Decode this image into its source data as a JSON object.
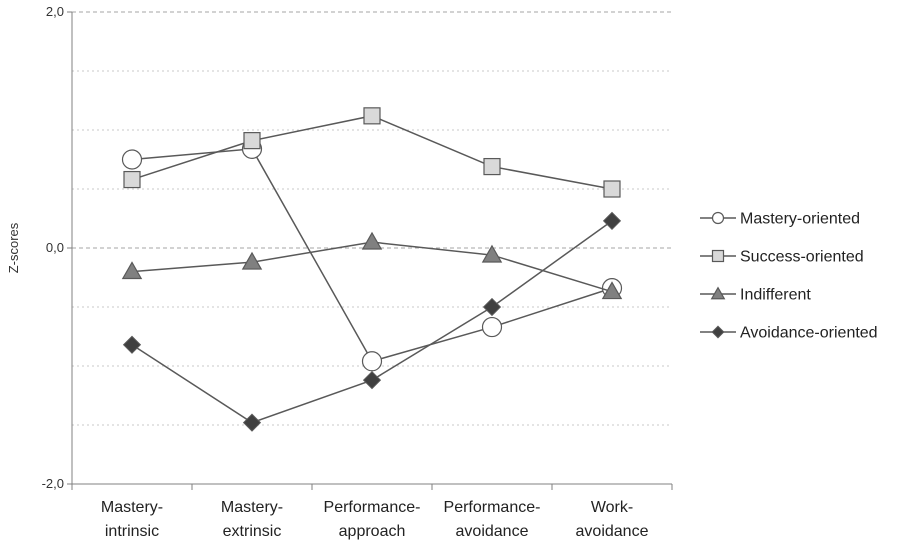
{
  "chart_data": {
    "type": "line",
    "title": "",
    "xlabel": "",
    "ylabel": "Z-scores",
    "ylim": [
      -2,
      2
    ],
    "y_ticks": [
      -2,
      0,
      2
    ],
    "y_tick_labels": [
      "-2,0",
      "0,0",
      "2,0"
    ],
    "grid": "horizontal dashed/dotted",
    "legend_position": "right",
    "categories": [
      [
        "Mastery-",
        "intrinsic"
      ],
      [
        "Mastery-",
        "extrinsic"
      ],
      [
        "Performance-",
        "approach"
      ],
      [
        "Performance-",
        "avoidance"
      ],
      [
        "Work-",
        "avoidance"
      ]
    ],
    "series": [
      {
        "name": "Mastery-oriented",
        "marker": "circle",
        "fill": "#ffffff",
        "values": [
          0.75,
          0.84,
          -0.96,
          -0.67,
          -0.34
        ]
      },
      {
        "name": "Success-oriented",
        "marker": "square",
        "fill": "#d9d9d9",
        "values": [
          0.58,
          0.91,
          1.12,
          0.69,
          0.5
        ]
      },
      {
        "name": "Indifferent",
        "marker": "triangle",
        "fill": "#808080",
        "values": [
          -0.2,
          -0.12,
          0.05,
          -0.06,
          -0.37
        ]
      },
      {
        "name": "Avoidance-oriented",
        "marker": "diamond",
        "fill": "#404040",
        "values": [
          -0.82,
          -1.48,
          -1.12,
          -0.5,
          0.23
        ]
      }
    ],
    "colors": {
      "line": "#595959",
      "marker_stroke": "#595959",
      "grid_major": "#a6a6a6",
      "grid_minor": "#c8c8c8",
      "axis": "#808080"
    }
  }
}
